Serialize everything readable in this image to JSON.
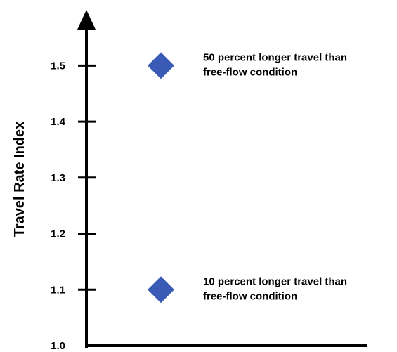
{
  "chart_data": {
    "type": "scatter",
    "title": "",
    "xlabel": "",
    "ylabel": "Travel Rate Index",
    "ylim": [
      1.0,
      1.6
    ],
    "yticks": [
      "1.0",
      "1.1",
      "1.2",
      "1.3",
      "1.4",
      "1.5"
    ],
    "grid": false,
    "marker": "diamond",
    "marker_color": "#3A5BB5",
    "points": [
      {
        "y": 1.5,
        "annotation_lines": [
          "50 percent longer travel than",
          "free-flow condition"
        ]
      },
      {
        "y": 1.1,
        "annotation_lines": [
          "10 percent longer travel than",
          "free-flow condition"
        ]
      }
    ]
  }
}
